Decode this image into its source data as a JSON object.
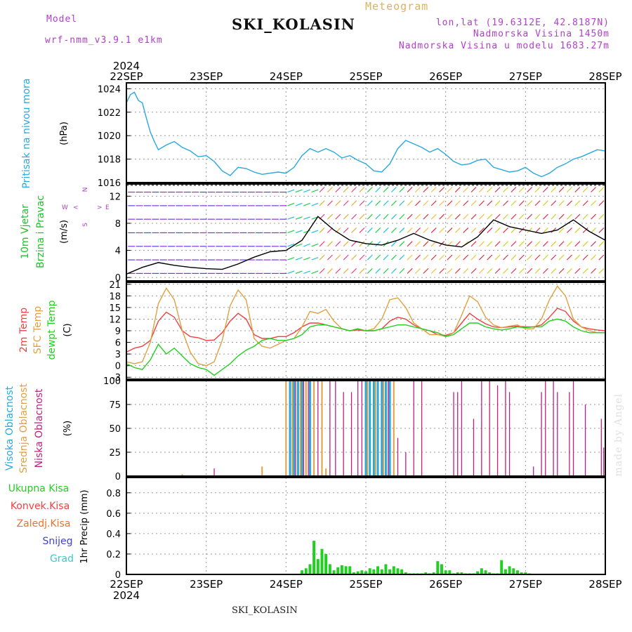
{
  "header": {
    "model_label": "Model",
    "model_name": "wrf-nmm_v3.9.1 e1km",
    "title": "SKI_KOLASIN",
    "subtitle": "Meteogram",
    "lonlat": "lon,lat (19.6312E, 42.8187N)",
    "elevation": "Nadmorska Visina 1450m",
    "model_elevation": "Nadmorska Visina u modelu 1683.27m"
  },
  "footer": {
    "station": "SKI_KOLASIN",
    "credit": "made by Angel"
  },
  "time_axis": {
    "year": "2024",
    "labels": [
      "22SEP",
      "23SEP",
      "24SEP",
      "25SEP",
      "26SEP",
      "27SEP",
      "28SEP"
    ]
  },
  "colors": {
    "pressure": "#29a8e0",
    "temp2m": "#f04040",
    "sfc_temp": "#e0a040",
    "dewpoint": "#20d020",
    "cloud_high": "#29a8e0",
    "cloud_mid": "#e0a040",
    "cloud_low": "#c02080",
    "precip_total": "#20d020",
    "precip_conv": "#f04040",
    "precip_frozen": "#f07030",
    "snow": "#4040e0",
    "hail": "#40c8c8"
  },
  "chart_data": [
    {
      "type": "line",
      "title": "Pritisak na nivou mora",
      "ylabel": "(hPa)",
      "ylim": [
        1016,
        1024.5
      ],
      "yticks": [
        1016,
        1018,
        1020,
        1022,
        1024
      ],
      "series": [
        {
          "name": "Pritisak na nivou mora",
          "x": [
            0,
            0.05,
            0.1,
            0.15,
            0.2,
            0.25,
            0.3,
            0.35,
            0.4,
            0.5,
            0.6,
            0.7,
            0.8,
            0.9,
            1.0,
            1.1,
            1.2,
            1.3,
            1.4,
            1.5,
            1.6,
            1.7,
            1.8,
            1.9,
            2.0,
            2.1,
            2.2,
            2.3,
            2.4,
            2.5,
            2.6,
            2.7,
            2.8,
            2.9,
            3.0,
            3.1,
            3.2,
            3.3,
            3.4,
            3.5,
            3.6,
            3.7,
            3.8,
            3.9,
            4.0,
            4.1,
            4.2,
            4.3,
            4.4,
            4.5,
            4.6,
            4.7,
            4.8,
            4.9,
            5.0,
            5.1,
            5.2,
            5.3,
            5.4,
            5.5,
            5.6,
            5.7,
            5.8,
            5.9,
            6.0
          ],
          "y": [
            1022.8,
            1023.5,
            1023.7,
            1023.0,
            1022.8,
            1021.5,
            1020.3,
            1019.5,
            1018.8,
            1019.2,
            1019.5,
            1019.0,
            1018.7,
            1018.2,
            1018.3,
            1017.8,
            1017.0,
            1016.6,
            1017.3,
            1017.2,
            1016.9,
            1016.7,
            1016.8,
            1016.9,
            1016.8,
            1017.3,
            1018.3,
            1018.9,
            1018.6,
            1018.9,
            1018.6,
            1018.1,
            1018.3,
            1017.9,
            1017.6,
            1017.0,
            1016.9,
            1017.6,
            1018.9,
            1019.6,
            1019.3,
            1019.0,
            1018.6,
            1018.9,
            1018.4,
            1017.8,
            1017.5,
            1017.6,
            1017.9,
            1018.0,
            1017.3,
            1017.1,
            1016.9,
            1017.0,
            1017.3,
            1016.8,
            1016.5,
            1016.8,
            1017.3,
            1017.6,
            1018.0,
            1018.2,
            1018.5,
            1018.8,
            1018.7
          ]
        }
      ]
    },
    {
      "type": "line",
      "title": "10m Vjetar Brzina i Pravac",
      "ylabel": "(m/s)",
      "direction_key": [
        "N",
        "W",
        "E",
        "S",
        "<",
        ">"
      ],
      "ylim": [
        -0.5,
        13.8
      ],
      "yticks": [
        0,
        4,
        8,
        12
      ],
      "series": [
        {
          "name": "Brzina",
          "x": [
            0,
            0.2,
            0.4,
            0.6,
            0.8,
            1.0,
            1.2,
            1.4,
            1.6,
            1.8,
            2.0,
            2.2,
            2.4,
            2.6,
            2.8,
            3.0,
            3.2,
            3.4,
            3.6,
            3.8,
            4.0,
            4.2,
            4.4,
            4.6,
            4.8,
            5.0,
            5.2,
            5.4,
            5.6,
            5.8,
            6.0
          ],
          "y": [
            0.5,
            1.5,
            2.2,
            1.8,
            1.5,
            1.3,
            1.2,
            2.0,
            3.0,
            3.8,
            4.0,
            5.5,
            9.0,
            7.0,
            5.5,
            5.0,
            4.8,
            5.5,
            6.5,
            5.5,
            4.8,
            4.5,
            6.0,
            8.5,
            7.5,
            7.0,
            6.5,
            7.0,
            8.5,
            6.8,
            5.5
          ]
        }
      ]
    },
    {
      "type": "line",
      "title": "2m Temp / SFC Temp / dewpt Temp",
      "ylabel": "(C)",
      "ylim": [
        -3.5,
        21.5
      ],
      "yticks": [
        -3,
        0,
        3,
        6,
        9,
        12,
        15,
        18,
        21
      ],
      "series": [
        {
          "name": "2m Temp",
          "x": [
            0,
            0.1,
            0.2,
            0.3,
            0.4,
            0.5,
            0.6,
            0.7,
            0.8,
            0.9,
            1.0,
            1.1,
            1.2,
            1.3,
            1.4,
            1.5,
            1.6,
            1.7,
            1.8,
            1.9,
            2.0,
            2.1,
            2.2,
            2.3,
            2.4,
            2.5,
            2.6,
            2.7,
            2.8,
            2.9,
            3.0,
            3.1,
            3.2,
            3.3,
            3.4,
            3.5,
            3.6,
            3.7,
            3.8,
            3.9,
            4.0,
            4.1,
            4.2,
            4.3,
            4.4,
            4.5,
            4.6,
            4.7,
            4.8,
            4.9,
            5.0,
            5.1,
            5.2,
            5.3,
            5.4,
            5.5,
            5.6,
            5.7,
            5.8,
            5.9,
            6.0
          ],
          "y": [
            3.5,
            4.5,
            5.0,
            6.5,
            11.5,
            13.8,
            12.5,
            9.0,
            7.5,
            7.2,
            6.5,
            6.6,
            8.5,
            11.5,
            13.5,
            12.0,
            8.0,
            7.0,
            7.0,
            7.5,
            7.5,
            8.5,
            10.0,
            11.0,
            11.0,
            10.5,
            10.0,
            9.5,
            9.0,
            9.2,
            9.0,
            9.0,
            9.5,
            11.5,
            12.5,
            12.0,
            10.5,
            9.5,
            9.0,
            8.0,
            7.8,
            8.5,
            11.0,
            13.5,
            12.0,
            10.8,
            10.0,
            9.8,
            10.0,
            10.2,
            10.0,
            10.0,
            10.5,
            12.5,
            14.8,
            14.0,
            11.5,
            10.0,
            9.5,
            9.2,
            9.0
          ]
        },
        {
          "name": "SFC Temp",
          "x": [
            0,
            0.1,
            0.2,
            0.3,
            0.4,
            0.5,
            0.6,
            0.7,
            0.8,
            0.9,
            1.0,
            1.1,
            1.2,
            1.3,
            1.4,
            1.5,
            1.6,
            1.7,
            1.8,
            1.9,
            2.0,
            2.1,
            2.2,
            2.3,
            2.4,
            2.5,
            2.6,
            2.7,
            2.8,
            2.9,
            3.0,
            3.1,
            3.2,
            3.3,
            3.4,
            3.5,
            3.6,
            3.7,
            3.8,
            3.9,
            4.0,
            4.1,
            4.2,
            4.3,
            4.4,
            4.5,
            4.6,
            4.7,
            4.8,
            4.9,
            5.0,
            5.1,
            5.2,
            5.3,
            5.4,
            5.5,
            5.6,
            5.7,
            5.8,
            5.9,
            6.0
          ],
          "y": [
            1.0,
            0.5,
            1.0,
            6.0,
            16.0,
            20.0,
            17.0,
            9.0,
            3.5,
            0.5,
            0.0,
            1.0,
            6.5,
            15.5,
            19.5,
            17.0,
            7.0,
            5.0,
            4.5,
            5.5,
            6.5,
            7.0,
            10.0,
            14.0,
            13.5,
            14.5,
            11.5,
            9.5,
            9.0,
            9.5,
            9.0,
            9.5,
            12.0,
            17.0,
            17.5,
            15.0,
            11.0,
            9.5,
            8.0,
            8.0,
            7.5,
            8.5,
            13.0,
            18.0,
            16.5,
            12.5,
            10.5,
            9.8,
            10.2,
            10.5,
            9.5,
            9.5,
            12.0,
            17.0,
            20.5,
            18.0,
            12.0,
            10.0,
            9.0,
            8.5,
            8.5
          ]
        },
        {
          "name": "dewpt Temp",
          "x": [
            0,
            0.1,
            0.2,
            0.3,
            0.4,
            0.5,
            0.6,
            0.7,
            0.8,
            0.9,
            1.0,
            1.1,
            1.2,
            1.3,
            1.4,
            1.5,
            1.6,
            1.7,
            1.8,
            1.9,
            2.0,
            2.1,
            2.2,
            2.3,
            2.4,
            2.5,
            2.6,
            2.7,
            2.8,
            2.9,
            3.0,
            3.1,
            3.2,
            3.3,
            3.4,
            3.5,
            3.6,
            3.7,
            3.8,
            3.9,
            4.0,
            4.1,
            4.2,
            4.3,
            4.4,
            4.5,
            4.6,
            4.7,
            4.8,
            4.9,
            5.0,
            5.1,
            5.2,
            5.3,
            5.4,
            5.5,
            5.6,
            5.7,
            5.8,
            5.9,
            6.0
          ],
          "y": [
            0.5,
            -0.5,
            -1.0,
            1.5,
            5.5,
            3.0,
            4.5,
            2.5,
            0.5,
            -0.5,
            -1.0,
            -2.5,
            -1.0,
            0.5,
            2.5,
            4.0,
            5.0,
            6.5,
            7.0,
            6.5,
            6.5,
            7.0,
            8.0,
            10.0,
            10.5,
            10.5,
            10.0,
            9.5,
            9.0,
            9.5,
            9.0,
            9.0,
            9.5,
            10.0,
            10.5,
            10.5,
            10.0,
            9.5,
            9.0,
            8.5,
            7.5,
            8.0,
            9.5,
            11.0,
            11.0,
            10.0,
            9.5,
            9.2,
            9.5,
            10.0,
            9.8,
            10.0,
            10.0,
            11.5,
            12.0,
            11.5,
            10.0,
            9.0,
            8.5,
            8.5,
            8.5
          ]
        }
      ]
    },
    {
      "type": "bar",
      "title": "Visoka / Srednja / Niska Oblacnost",
      "ylabel": "(%)",
      "ylim": [
        0,
        100
      ],
      "yticks": [
        0,
        25,
        50,
        75,
        100
      ],
      "series": [
        {
          "name": "Visoka Oblacnost",
          "x": [
            2.05,
            2.1,
            2.15,
            2.2,
            2.3,
            3.0,
            3.05,
            3.1,
            3.15,
            3.2,
            3.25,
            3.3
          ],
          "y": [
            100,
            100,
            100,
            100,
            100,
            100,
            100,
            100,
            100,
            100,
            100,
            100
          ]
        },
        {
          "name": "Srednja Oblacnost",
          "x": [
            0.7,
            1.7,
            2.0,
            2.08,
            2.18,
            2.25,
            2.35,
            2.45,
            2.5,
            3.02,
            3.12,
            3.22,
            3.35
          ],
          "y": [
            2,
            10,
            100,
            100,
            100,
            100,
            100,
            100,
            8,
            100,
            100,
            100,
            100
          ]
        },
        {
          "name": "Niska Oblacnost",
          "x": [
            1.1,
            2.12,
            2.22,
            2.28,
            2.4,
            2.55,
            2.62,
            2.72,
            2.82,
            2.9,
            2.95,
            3.28,
            3.4,
            3.5,
            3.6,
            3.7,
            4.1,
            4.15,
            4.2,
            4.35,
            4.45,
            4.55,
            4.65,
            4.75,
            4.8,
            5.1,
            5.2,
            5.25,
            5.35,
            5.4,
            5.55,
            5.6,
            5.75,
            5.95,
            5.98
          ],
          "y": [
            8,
            100,
            100,
            100,
            100,
            100,
            100,
            88,
            88,
            100,
            100,
            100,
            40,
            25,
            100,
            100,
            88,
            88,
            100,
            60,
            100,
            100,
            95,
            100,
            88,
            10,
            88,
            100,
            100,
            88,
            88,
            100,
            75,
            60,
            30
          ]
        }
      ]
    },
    {
      "type": "bar",
      "title": "1hr Precip",
      "ylabel": "1hr Precip (mm)",
      "legend": [
        "Ukupna Kisa",
        "Konvek.Kisa",
        "Zaledj.Kisa",
        "Snijeg",
        "Grad"
      ],
      "ylim": [
        0,
        0.95
      ],
      "yticks": [
        0,
        0.2,
        0.4,
        0.6,
        0.8
      ],
      "series": [
        {
          "name": "Ukupna Kisa",
          "x": [
            2.2,
            2.25,
            2.3,
            2.35,
            2.4,
            2.45,
            2.5,
            2.55,
            2.6,
            2.65,
            2.7,
            2.75,
            2.8,
            2.85,
            2.9,
            2.95,
            3.0,
            3.05,
            3.1,
            3.15,
            3.2,
            3.25,
            3.3,
            3.35,
            3.4,
            3.45,
            3.5,
            3.55,
            3.6,
            3.65,
            3.7,
            3.75,
            3.8,
            3.85,
            3.9,
            3.95,
            4.0,
            4.05,
            4.1,
            4.15,
            4.2,
            4.25,
            4.3,
            4.35,
            4.4,
            4.45,
            4.5,
            4.55,
            4.6,
            4.65,
            4.7,
            4.75,
            4.8,
            4.85,
            4.9,
            4.95,
            5.0,
            5.05
          ],
          "y": [
            0.04,
            0.06,
            0.1,
            0.33,
            0.15,
            0.25,
            0.2,
            0.1,
            0.04,
            0.07,
            0.09,
            0.08,
            0.08,
            0.02,
            0.03,
            0.04,
            0.03,
            0.06,
            0.05,
            0.08,
            0.05,
            0.1,
            0.05,
            0.08,
            0.06,
            0.05,
            0.02,
            0.01,
            0.01,
            0.01,
            0.01,
            0.02,
            0.01,
            0.02,
            0.13,
            0.1,
            0.04,
            0.04,
            0.01,
            0.02,
            0.02,
            0.01,
            0.01,
            0.01,
            0.03,
            0.06,
            0.04,
            0.02,
            0.01,
            0.01,
            0.14,
            0.05,
            0.08,
            0.06,
            0.04,
            0.02,
            0.02,
            0.01
          ]
        },
        {
          "name": "Konvek.Kisa",
          "x": [],
          "y": []
        },
        {
          "name": "Zaledj.Kisa",
          "x": [],
          "y": []
        },
        {
          "name": "Snijeg",
          "x": [],
          "y": []
        },
        {
          "name": "Grad",
          "x": [],
          "y": []
        }
      ]
    }
  ]
}
